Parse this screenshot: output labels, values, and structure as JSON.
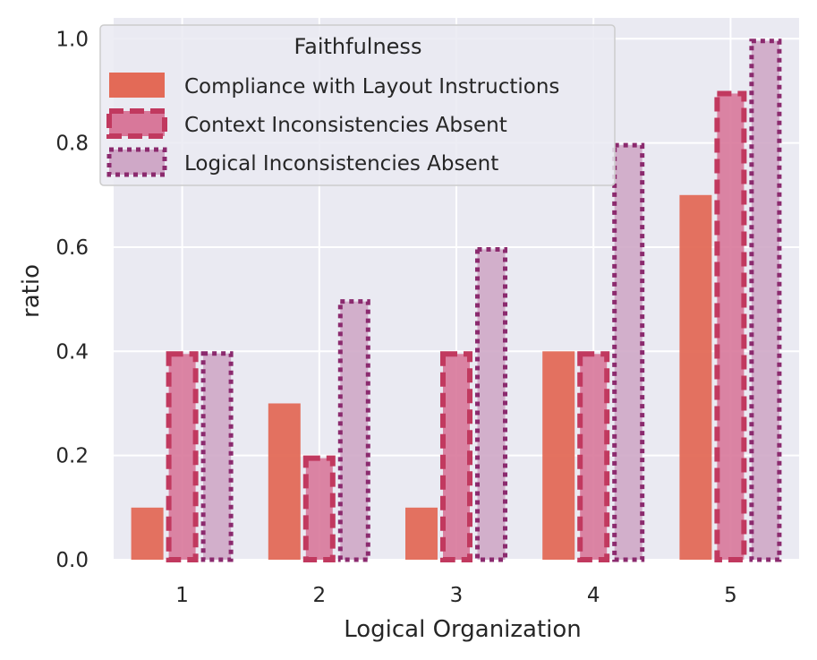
{
  "chart_data": {
    "type": "bar",
    "xlabel": "Logical Organization",
    "ylabel": "ratio",
    "categories": [
      "1",
      "2",
      "3",
      "4",
      "5"
    ],
    "ylim": [
      0,
      1.04
    ],
    "yticks": [
      "0.0",
      "0.2",
      "0.4",
      "0.6",
      "0.8",
      "1.0"
    ],
    "legend_title": "Faithfulness",
    "legend_position": "top-left",
    "series": [
      {
        "name": "Compliance with Layout Instructions",
        "values": [
          0.1,
          0.3,
          0.1,
          0.4,
          0.7
        ],
        "fill": "#e36a57",
        "edge": "#e36a57",
        "style": "solid"
      },
      {
        "name": "Context Inconsistencies Absent",
        "values": [
          0.4,
          0.2,
          0.4,
          0.4,
          0.9
        ],
        "fill": "#d8789a",
        "edge": "#c1395f",
        "style": "dashed"
      },
      {
        "name": "Logical Inconsistencies Absent",
        "values": [
          0.4,
          0.5,
          0.6,
          0.8,
          1.0
        ],
        "fill": "#cfa8c7",
        "edge": "#8b2a6e",
        "style": "dotted"
      }
    ],
    "background": "#eaeaf2",
    "grid": true
  }
}
